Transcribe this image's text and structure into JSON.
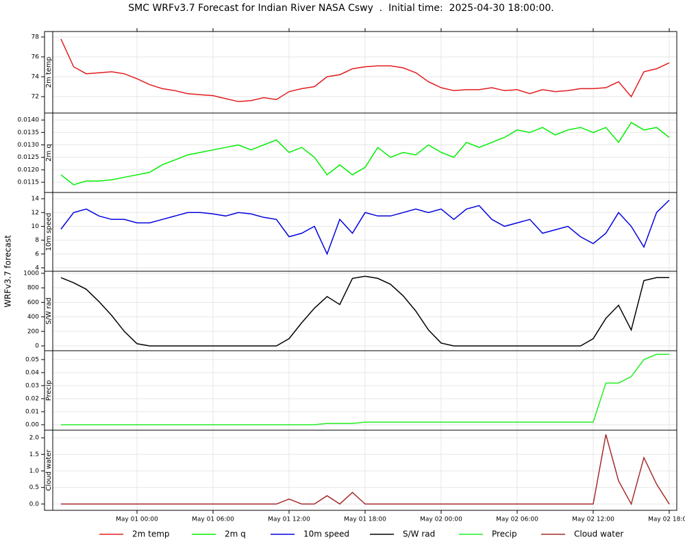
{
  "chart_data": {
    "type": "line",
    "title": "SMC WRFv3.7 Forecast for Indian River NASA Cswy  .  Initial time:  2025-04-30 18:00:00.",
    "ylabel": "WRFv3.7 forecast",
    "grid": true,
    "legend": "bottom",
    "x": [
      "Apr 30 18:00",
      "Apr 30 19:00",
      "Apr 30 20:00",
      "Apr 30 21:00",
      "Apr 30 22:00",
      "Apr 30 23:00",
      "May 01 00:00",
      "May 01 01:00",
      "May 01 02:00",
      "May 01 03:00",
      "May 01 04:00",
      "May 01 05:00",
      "May 01 06:00",
      "May 01 07:00",
      "May 01 08:00",
      "May 01 09:00",
      "May 01 10:00",
      "May 01 11:00",
      "May 01 12:00",
      "May 01 13:00",
      "May 01 14:00",
      "May 01 15:00",
      "May 01 16:00",
      "May 01 17:00",
      "May 01 18:00",
      "May 01 19:00",
      "May 01 20:00",
      "May 01 21:00",
      "May 01 22:00",
      "May 01 23:00",
      "May 02 00:00",
      "May 02 01:00",
      "May 02 02:00",
      "May 02 03:00",
      "May 02 04:00",
      "May 02 05:00",
      "May 02 06:00",
      "May 02 07:00",
      "May 02 08:00",
      "May 02 09:00",
      "May 02 10:00",
      "May 02 11:00",
      "May 02 12:00",
      "May 02 13:00",
      "May 02 14:00",
      "May 02 15:00",
      "May 02 16:00",
      "May 02 17:00",
      "May 02 18:00"
    ],
    "xlim": [
      "Apr 30 18:00",
      "May 02 18:00"
    ],
    "xticks": [
      "May 01 00:00",
      "May 01 06:00",
      "May 01 12:00",
      "May 01 18:00",
      "May 02 00:00",
      "May 02 06:00",
      "May 02 12:00",
      "May 02 18:00"
    ],
    "panels": [
      {
        "ylim": [
          70.35,
          78.55
        ],
        "yticks": [
          72,
          74,
          76,
          78
        ],
        "series": [
          {
            "name": "2m temp",
            "color": "#e31a1c",
            "values": [
              77.8,
              75.0,
              74.3,
              74.4,
              74.5,
              74.3,
              73.8,
              73.2,
              72.8,
              72.6,
              72.3,
              72.2,
              72.1,
              71.8,
              71.5,
              71.6,
              71.9,
              71.7,
              72.5,
              72.8,
              73.0,
              74.0,
              74.2,
              74.8,
              75.0,
              75.1,
              75.1,
              74.9,
              74.4,
              73.5,
              72.9,
              72.6,
              72.7,
              72.7,
              72.9,
              72.6,
              72.7,
              72.3,
              72.7,
              72.5,
              72.6,
              72.8,
              72.8,
              72.9,
              73.5,
              72.0,
              74.5,
              74.8,
              75.4
            ]
          }
        ]
      },
      {
        "ylim": [
          0.01109,
          0.01428
        ],
        "yticks": [
          0.0115,
          {
            "value": 0.012,
            "label": "0.0120"
          },
          0.0125,
          {
            "value": 0.013,
            "label": "0.0130"
          },
          0.0135,
          {
            "value": 0.014,
            "label": "0.0140"
          }
        ],
        "series": [
          {
            "name": "2m q",
            "color": "#00ee00",
            "values": [
              0.0118,
              0.0114,
              0.01155,
              0.01155,
              0.0116,
              0.0117,
              0.0118,
              0.0119,
              0.0122,
              0.0124,
              0.0126,
              0.0127,
              0.0128,
              0.0129,
              0.013,
              0.0128,
              0.013,
              0.0132,
              0.0127,
              0.0129,
              0.0125,
              0.0118,
              0.0122,
              0.0118,
              0.0121,
              0.0129,
              0.0125,
              0.0127,
              0.0126,
              0.013,
              0.0127,
              0.0125,
              0.0131,
              0.0129,
              0.0131,
              0.0133,
              0.0136,
              0.0135,
              0.0137,
              0.0134,
              0.0136,
              0.0137,
              0.0135,
              0.0137,
              0.0131,
              0.0139,
              0.0136,
              0.0137,
              0.0133
            ]
          }
        ]
      },
      {
        "ylim": [
          3.5,
          14.9
        ],
        "yticks": [
          4,
          6,
          8,
          10,
          12,
          14
        ],
        "series": [
          {
            "name": "10m speed",
            "color": "#0000dd",
            "values": [
              9.6,
              12,
              12.5,
              11.5,
              11,
              11,
              10.5,
              10.5,
              11,
              11.5,
              12,
              12,
              11.8,
              11.5,
              12,
              11.8,
              11.3,
              11,
              8.5,
              9,
              10,
              6,
              11,
              9,
              12,
              11.5,
              11.5,
              12,
              12.5,
              12,
              12.5,
              11,
              12.5,
              13,
              11,
              10,
              10.5,
              11,
              9,
              9.5,
              10,
              8.5,
              7.5,
              9,
              12,
              10,
              7,
              12,
              13.8
            ]
          }
        ]
      },
      {
        "ylim": [
          -66,
          1028
        ],
        "yticks": [
          0,
          200,
          400,
          600,
          800,
          1000
        ],
        "series": [
          {
            "name": "S/W rad",
            "color": "#000000",
            "values": [
              940,
              870,
              780,
              610,
              420,
              200,
              30,
              0,
              0,
              0,
              0,
              0,
              0,
              0,
              0,
              0,
              0,
              0,
              100,
              320,
              520,
              680,
              570,
              930,
              960,
              930,
              850,
              690,
              480,
              220,
              40,
              0,
              0,
              0,
              0,
              0,
              0,
              0,
              0,
              0,
              0,
              0,
              100,
              380,
              560,
              220,
              900,
              940,
              940
            ]
          }
        ]
      },
      {
        "ylim": [
          -0.0042,
          0.0568
        ],
        "yticks": [
          {
            "value": 0,
            "label": "0.00"
          },
          0.01,
          0.02,
          0.03,
          0.04,
          0.05
        ],
        "series": [
          {
            "name": "Precip",
            "color": "#22ee22",
            "values": [
              0,
              0,
              0,
              0,
              0,
              0,
              0,
              0,
              0,
              0,
              0,
              0,
              0,
              0,
              0,
              0,
              0,
              0,
              0,
              0,
              0,
              0.001,
              0.001,
              0.001,
              0.002,
              0.002,
              0.002,
              0.002,
              0.002,
              0.002,
              0.002,
              0.002,
              0.002,
              0.002,
              0.002,
              0.002,
              0.002,
              0.002,
              0.002,
              0.002,
              0.002,
              0.002,
              0.002,
              0.032,
              0.032,
              0.037,
              0.05,
              0.054,
              0.054
            ]
          }
        ]
      },
      {
        "ylim": [
          -0.19,
          2.23
        ],
        "yticks": [
          {
            "value": 0,
            "label": "0.0"
          },
          0.5,
          {
            "value": 1,
            "label": "1.0"
          },
          1.5,
          {
            "value": 2,
            "label": "2.0"
          }
        ],
        "series": [
          {
            "name": "Cloud water",
            "color": "#a52a2a",
            "values": [
              0,
              0,
              0,
              0,
              0,
              0,
              0,
              0,
              0,
              0,
              0,
              0,
              0,
              0,
              0,
              0,
              0,
              0,
              0.15,
              0,
              0,
              0.25,
              0,
              0.35,
              0,
              0,
              0,
              0,
              0,
              0,
              0,
              0,
              0,
              0,
              0,
              0,
              0,
              0,
              0,
              0,
              0,
              0,
              0,
              2.1,
              0.7,
              0,
              1.4,
              0.6,
              0
            ]
          }
        ]
      }
    ]
  }
}
